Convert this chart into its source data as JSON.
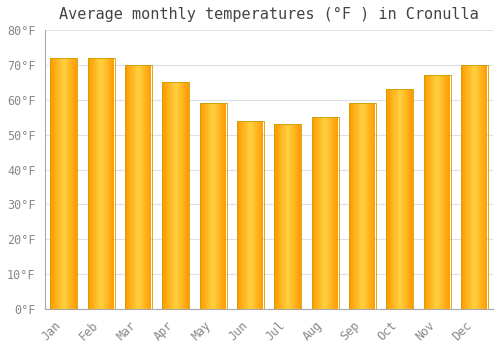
{
  "title": "Average monthly temperatures (°F ) in Cronulla",
  "months": [
    "Jan",
    "Feb",
    "Mar",
    "Apr",
    "May",
    "Jun",
    "Jul",
    "Aug",
    "Sep",
    "Oct",
    "Nov",
    "Dec"
  ],
  "values": [
    72,
    72,
    70,
    65,
    59,
    54,
    53,
    55,
    59,
    63,
    67,
    70
  ],
  "bar_color_left": "#FFA500",
  "bar_color_center": "#FFD060",
  "bar_color_right": "#FFA500",
  "bar_edge_color": "#C8A000",
  "ylim": [
    0,
    80
  ],
  "ytick_step": 10,
  "background_color": "#FFFFFF",
  "grid_color": "#E0E0E8",
  "title_fontsize": 11,
  "tick_fontsize": 8.5,
  "font_family": "monospace"
}
